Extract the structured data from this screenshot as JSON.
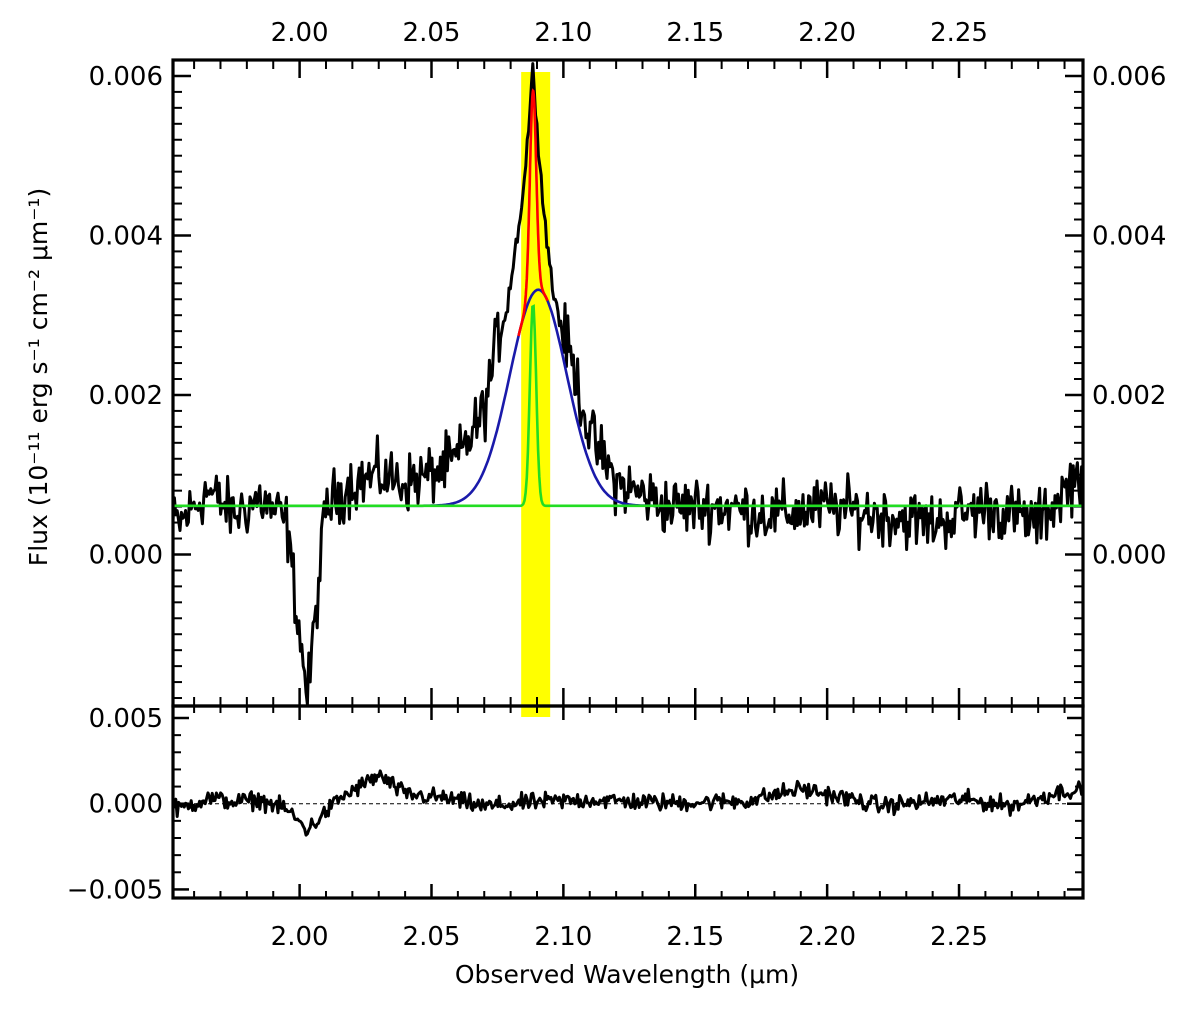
{
  "chart_data": [
    {
      "type": "line",
      "panel": "spectrum",
      "xlabel": "Observed Wavelength (μm)",
      "ylabel": "Flux (10⁻¹¹ erg s⁻¹ cm⁻² μm⁻¹)",
      "xlim": [
        1.952,
        2.297
      ],
      "ylim": [
        -0.0019,
        0.0062
      ],
      "x_ticks": [
        2.0,
        2.05,
        2.1,
        2.15,
        2.2,
        2.25
      ],
      "x_tick_labels": [
        "2.00",
        "2.05",
        "2.10",
        "2.15",
        "2.20",
        "2.25"
      ],
      "y_ticks": [
        0.0,
        0.002,
        0.004,
        0.006
      ],
      "y_tick_labels": [
        "0.000",
        "0.002",
        "0.004",
        "0.006"
      ],
      "highlight_band": {
        "x_range": [
          2.084,
          2.095
        ],
        "color": "#ffff00"
      },
      "continuum": 0.00061,
      "series": [
        {
          "role": "observed",
          "color": "#000000",
          "x_range": [
            1.952,
            2.297
          ],
          "approx_points": [
            [
              1.955,
              0.0004
            ],
            [
              1.965,
              0.0008
            ],
            [
              1.975,
              0.0005
            ],
            [
              1.985,
              0.0007
            ],
            [
              1.995,
              0.0004
            ],
            [
              2.003,
              -0.0018
            ],
            [
              2.01,
              0.0006
            ],
            [
              2.02,
              0.0009
            ],
            [
              2.03,
              0.001
            ],
            [
              2.04,
              0.0009
            ],
            [
              2.05,
              0.001
            ],
            [
              2.06,
              0.0012
            ],
            [
              2.07,
              0.0018
            ],
            [
              2.075,
              0.0027
            ],
            [
              2.08,
              0.0034
            ],
            [
              2.085,
              0.0046
            ],
            [
              2.0885,
              0.0061
            ],
            [
              2.092,
              0.0045
            ],
            [
              2.096,
              0.0033
            ],
            [
              2.1,
              0.0028
            ],
            [
              2.105,
              0.0022
            ],
            [
              2.11,
              0.0015
            ],
            [
              2.12,
              0.0009
            ],
            [
              2.14,
              0.0006
            ],
            [
              2.16,
              0.0006
            ],
            [
              2.18,
              0.0005
            ],
            [
              2.2,
              0.0006
            ],
            [
              2.22,
              0.0005
            ],
            [
              2.24,
              0.0004
            ],
            [
              2.26,
              0.0006
            ],
            [
              2.28,
              0.0004
            ],
            [
              2.295,
              0.001
            ]
          ]
        },
        {
          "role": "broad gaussian fit",
          "color": "#1a1aaa",
          "model": "gaussian",
          "peak_x": 2.0905,
          "amplitude": 0.00271,
          "sigma": 0.0108
        },
        {
          "role": "narrow gaussian fit",
          "color": "#22dd22",
          "model": "gaussian",
          "peak_x": 2.0885,
          "amplitude": 0.00254,
          "sigma": 0.0012
        },
        {
          "role": "total fit",
          "color": "#ff0000",
          "model": "sum of broad and narrow",
          "x_range": [
            2.083,
            2.094
          ]
        }
      ]
    },
    {
      "type": "line",
      "panel": "residuals",
      "xlabel": "Observed Wavelength (μm)",
      "xlim": [
        1.952,
        2.297
      ],
      "ylim": [
        -0.0055,
        0.0057
      ],
      "y_ticks": [
        -0.005,
        0.0,
        0.005
      ],
      "y_tick_labels": [
        "−0.005",
        "0.000",
        "0.005"
      ],
      "zero_line": {
        "y": 0.0,
        "style": "dashed"
      },
      "series": [
        {
          "role": "residual",
          "color": "#000000",
          "approx_points": [
            [
              1.955,
              -0.0005
            ],
            [
              1.965,
              0.0006
            ],
            [
              1.975,
              0.0002
            ],
            [
              1.985,
              0.0004
            ],
            [
              1.995,
              -0.0006
            ],
            [
              2.003,
              -0.0028
            ],
            [
              2.015,
              0.0005
            ],
            [
              2.03,
              0.003
            ],
            [
              2.04,
              0.001
            ],
            [
              2.055,
              0.0006
            ],
            [
              2.07,
              -0.0003
            ],
            [
              2.09,
              0.0002
            ],
            [
              2.11,
              0.0004
            ],
            [
              2.14,
              0.0001
            ],
            [
              2.17,
              0.0003
            ],
            [
              2.19,
              0.0016
            ],
            [
              2.22,
              -0.0002
            ],
            [
              2.25,
              0.0005
            ],
            [
              2.27,
              -0.0002
            ],
            [
              2.29,
              0.0014
            ]
          ]
        }
      ]
    }
  ]
}
